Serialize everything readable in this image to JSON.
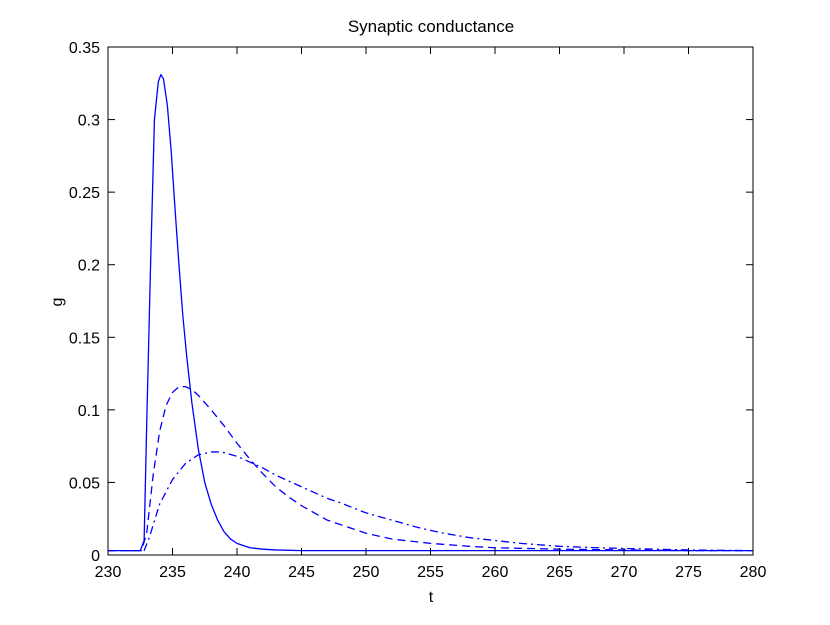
{
  "chart_data": {
    "type": "line",
    "title": "Synaptic conductance",
    "xlabel": "t",
    "ylabel": "g",
    "xlim": [
      230,
      280
    ],
    "ylim": [
      0,
      0.35
    ],
    "xticks": [
      230,
      235,
      240,
      245,
      250,
      255,
      260,
      265,
      270,
      275,
      280
    ],
    "yticks": [
      0,
      0.05,
      0.1,
      0.15,
      0.2,
      0.25,
      0.3,
      0.35
    ],
    "xtick_labels": [
      "230",
      "235",
      "240",
      "245",
      "250",
      "255",
      "260",
      "265",
      "270",
      "275",
      "280"
    ],
    "ytick_labels": [
      "0",
      "0.05",
      "0.1",
      "0.15",
      "0.2",
      "0.25",
      "0.3",
      "0.35"
    ],
    "grid": false,
    "line_color": "#0000ff",
    "series": [
      {
        "style": "solid",
        "x": [
          230,
          232.5,
          232.8,
          233.0,
          233.3,
          233.6,
          233.9,
          234.1,
          234.3,
          234.6,
          234.9,
          235.2,
          235.5,
          235.8,
          236.1,
          236.5,
          237.0,
          237.5,
          238.0,
          238.5,
          239.0,
          239.5,
          240.0,
          241.0,
          242.0,
          243.0,
          245.0,
          250.0,
          260.0,
          270.0,
          280.0
        ],
        "y": [
          0.003,
          0.003,
          0.01,
          0.09,
          0.2,
          0.3,
          0.326,
          0.331,
          0.328,
          0.31,
          0.278,
          0.238,
          0.2,
          0.165,
          0.137,
          0.105,
          0.073,
          0.05,
          0.035,
          0.024,
          0.016,
          0.011,
          0.008,
          0.005,
          0.004,
          0.0035,
          0.003,
          0.003,
          0.003,
          0.003,
          0.003
        ]
      },
      {
        "style": "dashed",
        "x": [
          230,
          232.6,
          233.0,
          233.5,
          234.0,
          234.5,
          235.0,
          235.5,
          236.0,
          236.5,
          237.0,
          238.0,
          239.0,
          240.0,
          241.0,
          242.0,
          243.0,
          244.0,
          245.0,
          246.0,
          247.0,
          248.0,
          249.0,
          250.0,
          252.0,
          255.0,
          258.0,
          260.0,
          265.0,
          270.0,
          275.0,
          280.0
        ],
        "y": [
          0.003,
          0.003,
          0.015,
          0.055,
          0.085,
          0.103,
          0.112,
          0.116,
          0.116,
          0.114,
          0.11,
          0.1,
          0.089,
          0.077,
          0.066,
          0.056,
          0.047,
          0.04,
          0.034,
          0.029,
          0.024,
          0.021,
          0.018,
          0.015,
          0.011,
          0.008,
          0.006,
          0.005,
          0.004,
          0.0035,
          0.003,
          0.003
        ]
      },
      {
        "style": "dashdot",
        "x": [
          230,
          232.8,
          233.2,
          234.0,
          235.0,
          236.0,
          237.0,
          238.0,
          238.5,
          239.0,
          240.0,
          241.0,
          242.0,
          243.0,
          244.0,
          245.0,
          246.0,
          247.0,
          248.0,
          250.0,
          252.0,
          254.0,
          256.0,
          258.0,
          260.0,
          262.0,
          265.0,
          268.0,
          270.0,
          275.0,
          280.0
        ],
        "y": [
          0.003,
          0.003,
          0.012,
          0.035,
          0.052,
          0.063,
          0.069,
          0.071,
          0.071,
          0.0705,
          0.068,
          0.064,
          0.06,
          0.055,
          0.051,
          0.047,
          0.043,
          0.039,
          0.036,
          0.029,
          0.024,
          0.019,
          0.015,
          0.012,
          0.01,
          0.008,
          0.006,
          0.005,
          0.0045,
          0.0035,
          0.003
        ]
      }
    ]
  }
}
